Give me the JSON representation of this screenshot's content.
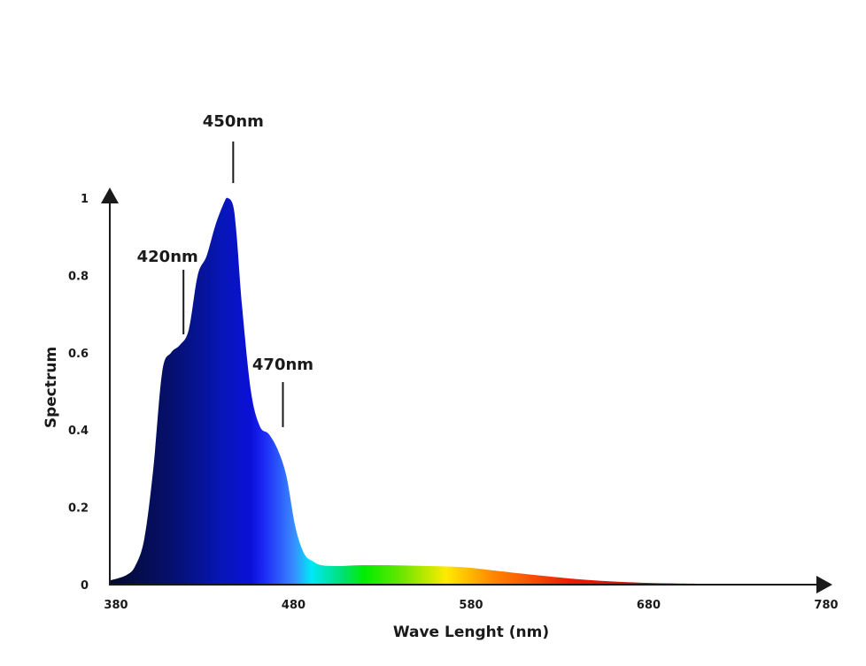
{
  "chart_data": {
    "type": "area",
    "title": "",
    "xlabel": "Wave Lenght (nm)",
    "ylabel": "Spectrum",
    "xlim": [
      380,
      780
    ],
    "ylim": [
      0,
      1
    ],
    "x_ticks": [
      "380",
      "480",
      "580",
      "680",
      "780"
    ],
    "y_ticks": [
      "0",
      "0.2",
      "0.4",
      "0.6",
      "0.8",
      "1"
    ],
    "grid": false,
    "legend": "none",
    "fill": "visible-spectrum gradient (navy → blue → cyan → green → yellow → red)",
    "annotations": [
      {
        "text": "450nm",
        "x": 450
      },
      {
        "text": "420nm",
        "x": 422
      },
      {
        "text": "470nm",
        "x": 478
      }
    ],
    "x": [
      380,
      390,
      395,
      400,
      405,
      410,
      415,
      420,
      425,
      430,
      435,
      440,
      445,
      447,
      450,
      452,
      455,
      460,
      465,
      470,
      475,
      480,
      485,
      490,
      495,
      500,
      510,
      520,
      540,
      560,
      580,
      600,
      620,
      650,
      680,
      720,
      780
    ],
    "y": [
      0.01,
      0.025,
      0.05,
      0.12,
      0.3,
      0.55,
      0.6,
      0.62,
      0.66,
      0.8,
      0.85,
      0.93,
      0.99,
      1.0,
      0.98,
      0.9,
      0.72,
      0.5,
      0.41,
      0.39,
      0.35,
      0.28,
      0.15,
      0.08,
      0.06,
      0.05,
      0.048,
      0.05,
      0.05,
      0.048,
      0.045,
      0.035,
      0.025,
      0.012,
      0.005,
      0.002,
      0.0
    ]
  }
}
